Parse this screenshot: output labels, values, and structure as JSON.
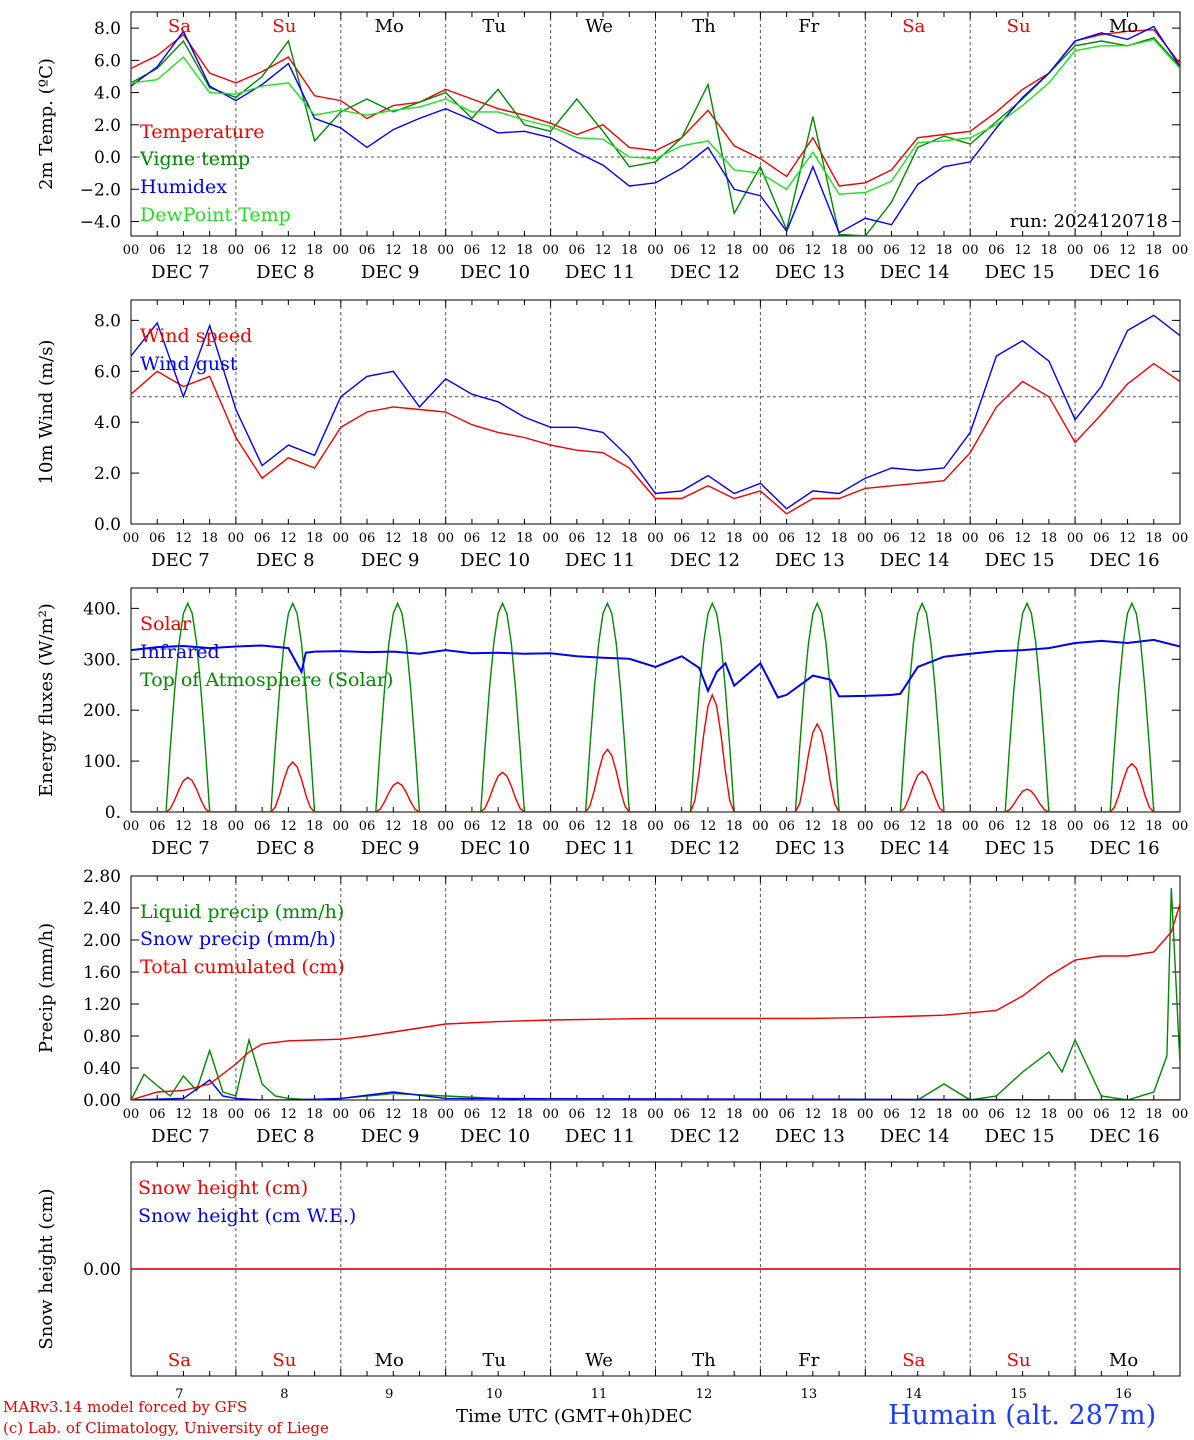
{
  "station": "Humain (alt. 287m)",
  "credits": [
    "MARv3.14 model forced by GFS",
    "(c) Lab. of Climatology, University of Liege"
  ],
  "run_label": "run: 2024120718",
  "x_axis_title": "Time UTC (GMT+0h)",
  "x_axis_month": "DEC",
  "days": [
    "Sa",
    "Su",
    "Mo",
    "Tu",
    "We",
    "Th",
    "Fr",
    "Sa",
    "Su",
    "Mo"
  ],
  "weekend_days": [
    "Sa",
    "Su"
  ],
  "dates": [
    "DEC  7",
    "DEC  8",
    "DEC  9",
    "DEC 10",
    "DEC 11",
    "DEC 12",
    "DEC 13",
    "DEC 14",
    "DEC 15",
    "DEC 16"
  ],
  "day_numbers": [
    "7",
    "8",
    "9",
    "10",
    "11",
    "12",
    "13",
    "14",
    "15",
    "16"
  ],
  "hour_ticks": [
    "00",
    "06",
    "12",
    "18"
  ],
  "colors": {
    "red": "#ee0000",
    "green": "#008800",
    "blue": "#0000ee",
    "lightgreen": "#22dd22"
  },
  "chart_data": [
    {
      "type": "line",
      "ylabel": "2m Temp. (ºC)",
      "ylim": [
        -4.9,
        9.0
      ],
      "yticks": [
        8.0,
        6.0,
        4.0,
        2.0,
        0.0,
        -2.0,
        -4.0
      ],
      "ytick_labels": [
        "8.0",
        "6.0",
        "4.0",
        "2.0",
        "0.0",
        "−2.0",
        "−4.0"
      ],
      "reference_line": 0.0,
      "x_hours": [
        0,
        6,
        12,
        18,
        24,
        30,
        36,
        42,
        48,
        54,
        60,
        66,
        72,
        78,
        84,
        90,
        96,
        102,
        108,
        114,
        120,
        126,
        132,
        138,
        144,
        150,
        156,
        162,
        168,
        174,
        180,
        186,
        192,
        198,
        204,
        210,
        216,
        222,
        228,
        234,
        240
      ],
      "series": [
        {
          "name": "Temperature",
          "color": "red",
          "values": [
            5.5,
            6.3,
            7.6,
            5.2,
            4.6,
            5.3,
            6.2,
            3.8,
            3.5,
            2.4,
            3.2,
            3.4,
            4.2,
            3.6,
            3.0,
            2.6,
            2.1,
            1.4,
            2.0,
            0.6,
            0.4,
            1.2,
            2.9,
            0.7,
            -0.1,
            -1.2,
            1.2,
            -1.8,
            -1.6,
            -0.8,
            1.2,
            1.4,
            1.6,
            2.8,
            4.2,
            5.2,
            7.2,
            7.6,
            7.8,
            7.9,
            5.8
          ]
        },
        {
          "name": "Vigne temp",
          "color": "green",
          "values": [
            4.6,
            5.5,
            7.2,
            4.3,
            3.7,
            5.0,
            7.2,
            1.0,
            2.8,
            3.6,
            2.8,
            3.4,
            4.0,
            2.4,
            4.2,
            2.0,
            1.6,
            3.6,
            1.6,
            -0.6,
            -0.3,
            1.2,
            4.5,
            -3.5,
            -0.6,
            -4.5,
            2.5,
            -4.8,
            -4.9,
            -2.8,
            0.6,
            1.3,
            0.8,
            2.2,
            3.6,
            5.2,
            6.9,
            7.2,
            6.9,
            7.4,
            5.6
          ]
        },
        {
          "name": "Humidex",
          "color": "blue",
          "values": [
            4.4,
            5.6,
            7.8,
            4.4,
            3.5,
            4.5,
            5.8,
            2.4,
            1.8,
            0.6,
            1.7,
            2.4,
            3.0,
            2.3,
            1.5,
            1.6,
            1.2,
            0.3,
            -0.5,
            -1.8,
            -1.6,
            -0.7,
            0.6,
            -2.0,
            -2.4,
            -4.6,
            -0.6,
            -4.7,
            -3.8,
            -4.2,
            -1.7,
            -0.6,
            -0.3,
            1.8,
            3.7,
            5.2,
            7.2,
            7.7,
            7.3,
            8.1,
            5.6
          ]
        },
        {
          "name": "DewPoint Temp",
          "color": "lightgreen",
          "values": [
            4.6,
            4.8,
            6.2,
            4.0,
            3.9,
            4.4,
            4.6,
            2.6,
            2.9,
            2.6,
            2.9,
            3.1,
            3.6,
            2.8,
            2.8,
            2.3,
            1.9,
            1.2,
            1.1,
            0.0,
            -0.1,
            0.7,
            1.0,
            -0.8,
            -1.0,
            -2.0,
            0.3,
            -2.3,
            -2.2,
            -1.5,
            0.9,
            1.0,
            1.2,
            2.0,
            3.2,
            4.6,
            6.6,
            6.9,
            6.9,
            7.3,
            5.5
          ]
        }
      ]
    },
    {
      "type": "line",
      "ylabel": "10m Wind (m/s)",
      "ylim": [
        0.0,
        8.8
      ],
      "yticks": [
        8.0,
        6.0,
        4.0,
        2.0,
        0.0
      ],
      "ytick_labels": [
        "8.0",
        "6.0",
        "4.0",
        "2.0",
        "0.0"
      ],
      "reference_line": 5.0,
      "x_hours": [
        0,
        6,
        12,
        18,
        24,
        30,
        36,
        42,
        48,
        54,
        60,
        66,
        72,
        78,
        84,
        90,
        96,
        102,
        108,
        114,
        120,
        126,
        132,
        138,
        144,
        150,
        156,
        162,
        168,
        174,
        180,
        186,
        192,
        198,
        204,
        210,
        216,
        222,
        228,
        234,
        240
      ],
      "series": [
        {
          "name": "Wind speed",
          "color": "red",
          "values": [
            5.1,
            6.0,
            5.4,
            5.8,
            3.4,
            1.8,
            2.6,
            2.2,
            3.8,
            4.4,
            4.6,
            4.5,
            4.4,
            3.9,
            3.6,
            3.4,
            3.1,
            2.9,
            2.8,
            2.2,
            1.0,
            1.0,
            1.5,
            1.0,
            1.3,
            0.4,
            1.0,
            1.0,
            1.4,
            1.5,
            1.6,
            1.7,
            2.8,
            4.6,
            5.6,
            5.0,
            3.2,
            4.3,
            5.5,
            6.3,
            5.6
          ]
        },
        {
          "name": "Wind gust",
          "color": "blue",
          "values": [
            6.6,
            7.9,
            5.0,
            7.8,
            4.5,
            2.3,
            3.1,
            2.7,
            5.0,
            5.8,
            6.0,
            4.6,
            5.7,
            5.1,
            4.8,
            4.2,
            3.8,
            3.8,
            3.6,
            2.6,
            1.2,
            1.3,
            1.9,
            1.2,
            1.6,
            0.6,
            1.3,
            1.2,
            1.8,
            2.2,
            2.1,
            2.2,
            3.6,
            6.6,
            7.2,
            6.4,
            4.1,
            5.4,
            7.6,
            8.2,
            7.4
          ]
        }
      ]
    },
    {
      "type": "line",
      "ylabel": "Energy fluxes (W/m²)",
      "ylim": [
        0,
        440
      ],
      "yticks": [
        400,
        300,
        200,
        100,
        0
      ],
      "ytick_labels": [
        "400.",
        "300.",
        "200.",
        "100.",
        "0."
      ],
      "day_noon_hours": [
        13,
        37,
        61,
        85,
        109,
        133,
        157,
        181,
        205,
        229
      ],
      "solar_peaks": [
        68,
        98,
        58,
        78,
        123,
        230,
        173,
        80,
        45,
        95
      ],
      "toa_peak": 410,
      "series": [
        {
          "name": "Solar",
          "color": "red"
        },
        {
          "name": "Infrared",
          "color": "blue",
          "x_hours": [
            0,
            6,
            12,
            18,
            24,
            30,
            36,
            39,
            40,
            42,
            48,
            54,
            60,
            66,
            72,
            78,
            84,
            90,
            96,
            102,
            108,
            114,
            120,
            126,
            130,
            132,
            134,
            136,
            138,
            144,
            148,
            150,
            154,
            156,
            160,
            162,
            168,
            174,
            176,
            180,
            186,
            192,
            198,
            204,
            210,
            216,
            222,
            228,
            234,
            240
          ],
          "values": [
            318,
            324,
            326,
            322,
            325,
            327,
            322,
            275,
            313,
            315,
            316,
            314,
            315,
            311,
            318,
            312,
            313,
            311,
            312,
            306,
            303,
            301,
            285,
            306,
            283,
            238,
            275,
            292,
            248,
            292,
            225,
            230,
            255,
            268,
            260,
            227,
            228,
            230,
            232,
            285,
            305,
            311,
            316,
            318,
            322,
            332,
            336,
            332,
            338,
            325
          ]
        },
        {
          "name": "Top of Atmosphere (Solar)",
          "color": "green"
        }
      ]
    },
    {
      "type": "line",
      "ylabel": "Precip (mm/h)",
      "ylim": [
        0.0,
        2.8
      ],
      "yticks": [
        2.8,
        2.4,
        2.0,
        1.6,
        1.2,
        0.8,
        0.4,
        0.0
      ],
      "ytick_labels": [
        "2.80",
        "2.40",
        "2.00",
        "1.60",
        "1.20",
        "0.80",
        "0.40",
        "0.00"
      ],
      "series": [
        {
          "name": "Liquid precip (mm/h)",
          "color": "green",
          "x_hours": [
            0,
            3,
            6,
            9,
            12,
            15,
            18,
            21,
            24,
            27,
            30,
            33,
            36,
            42,
            48,
            60,
            72,
            84,
            96,
            108,
            180,
            186,
            192,
            198,
            204,
            210,
            213,
            216,
            222,
            228,
            234,
            237,
            238,
            240
          ],
          "values": [
            0.0,
            0.32,
            0.18,
            0.05,
            0.3,
            0.12,
            0.62,
            0.1,
            0.05,
            0.75,
            0.2,
            0.05,
            0.02,
            0.0,
            0.02,
            0.08,
            0.05,
            0.02,
            0.0,
            0.0,
            0.0,
            0.2,
            0.0,
            0.05,
            0.35,
            0.6,
            0.35,
            0.75,
            0.05,
            0.0,
            0.1,
            0.55,
            2.65,
            0.45
          ]
        },
        {
          "name": "Snow precip (mm/h)",
          "color": "blue",
          "x_hours": [
            0,
            12,
            18,
            21,
            24,
            30,
            36,
            48,
            60,
            72,
            240
          ],
          "values": [
            0.0,
            0.02,
            0.25,
            0.05,
            0.02,
            0.0,
            0.0,
            0.02,
            0.1,
            0.02,
            0.0
          ]
        },
        {
          "name": "Total cumulated (cm)",
          "color": "red",
          "x_hours": [
            0,
            6,
            12,
            18,
            24,
            27,
            30,
            36,
            42,
            48,
            54,
            60,
            66,
            72,
            84,
            96,
            108,
            120,
            132,
            144,
            156,
            168,
            180,
            186,
            198,
            204,
            210,
            216,
            222,
            228,
            234,
            238,
            240
          ],
          "values": [
            0.0,
            0.1,
            0.12,
            0.2,
            0.45,
            0.6,
            0.7,
            0.74,
            0.75,
            0.76,
            0.8,
            0.85,
            0.9,
            0.95,
            0.98,
            1.0,
            1.01,
            1.02,
            1.02,
            1.02,
            1.02,
            1.03,
            1.05,
            1.06,
            1.12,
            1.3,
            1.55,
            1.75,
            1.8,
            1.8,
            1.85,
            2.1,
            2.45
          ]
        }
      ]
    },
    {
      "type": "line",
      "ylabel": "Snow height (cm)",
      "yticks": [
        0.0
      ],
      "ytick_labels": [
        "0.00"
      ],
      "series": [
        {
          "name": "Snow height (cm)",
          "color": "red",
          "values": [
            0.0,
            0.0
          ]
        },
        {
          "name": "Snow height (cm W.E.)",
          "color": "blue",
          "values": [
            0.0,
            0.0
          ]
        }
      ]
    }
  ]
}
